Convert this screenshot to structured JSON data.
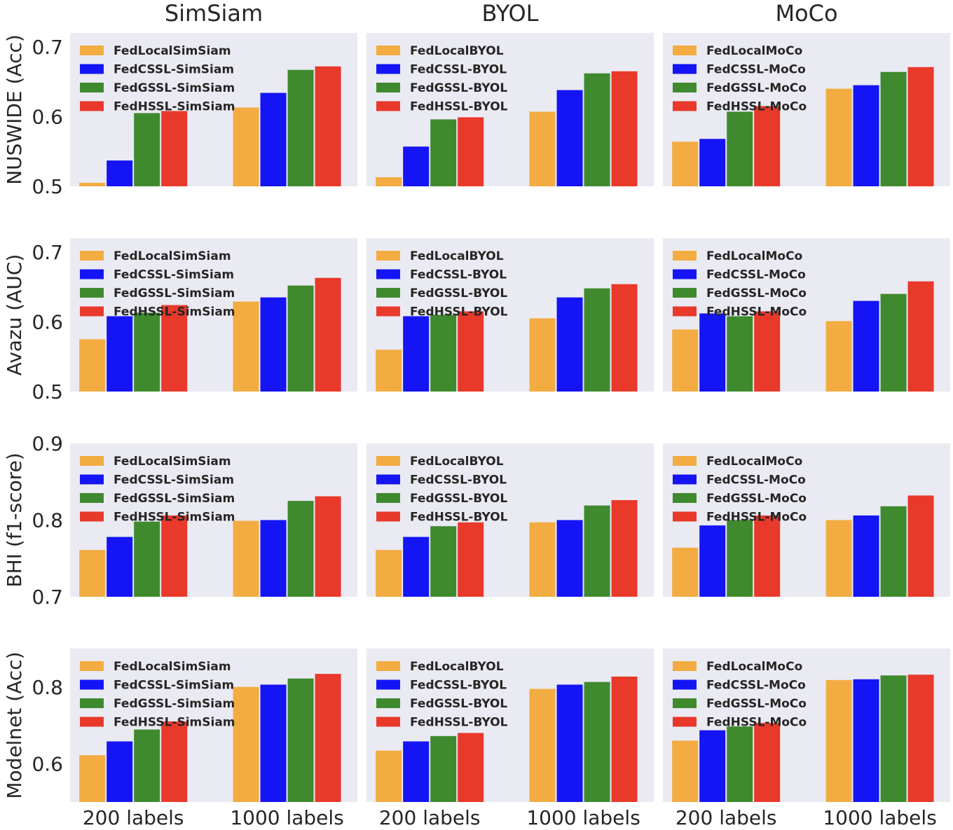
{
  "colors": {
    "panel_bg": "#eaeaf2",
    "local": "#f2ac42",
    "cssl": "#1414f5",
    "gssl": "#3f8a2f",
    "hssl": "#e8392b"
  },
  "columns": [
    "SimSiam",
    "BYOL",
    "MoCo"
  ],
  "row_labels": [
    "NUSWIDE (Acc)",
    "Avazu (AUC)",
    "BHI (f1-score)",
    "Modelnet (Acc)"
  ],
  "categories": [
    "200 labels",
    "1000 labels"
  ],
  "chart_data": [
    {
      "type": "bar",
      "row": 0,
      "col": 0,
      "title": "SimSiam",
      "ylabel": "NUSWIDE (Acc)",
      "ylim": [
        0.5,
        0.72
      ],
      "yticks": [
        "0.5",
        "0.6",
        "0.7"
      ],
      "categories": [
        "200 labels",
        "1000 labels"
      ],
      "legend": "top-left",
      "series": [
        {
          "name": "FedLocalSimSiam",
          "values": [
            0.505,
            0.613
          ]
        },
        {
          "name": "FedCSSL-SimSiam",
          "values": [
            0.537,
            0.634
          ]
        },
        {
          "name": "FedGSSL-SimSiam",
          "values": [
            0.605,
            0.667
          ]
        },
        {
          "name": "FedHSSL-SimSiam",
          "values": [
            0.608,
            0.672
          ]
        }
      ]
    },
    {
      "type": "bar",
      "row": 0,
      "col": 1,
      "title": "BYOL",
      "ylim": [
        0.5,
        0.72
      ],
      "categories": [
        "200 labels",
        "1000 labels"
      ],
      "legend": "top-left",
      "series": [
        {
          "name": "FedLocalBYOL",
          "values": [
            0.513,
            0.607
          ]
        },
        {
          "name": "FedCSSL-BYOL",
          "values": [
            0.557,
            0.638
          ]
        },
        {
          "name": "FedGSSL-BYOL",
          "values": [
            0.596,
            0.662
          ]
        },
        {
          "name": "FedHSSL-BYOL",
          "values": [
            0.599,
            0.665
          ]
        }
      ]
    },
    {
      "type": "bar",
      "row": 0,
      "col": 2,
      "title": "MoCo",
      "ylim": [
        0.5,
        0.72
      ],
      "categories": [
        "200 labels",
        "1000 labels"
      ],
      "legend": "top-left",
      "series": [
        {
          "name": "FedLocalMoCo",
          "values": [
            0.564,
            0.64
          ]
        },
        {
          "name": "FedCSSL-MoCo",
          "values": [
            0.568,
            0.645
          ]
        },
        {
          "name": "FedGSSL-MoCo",
          "values": [
            0.607,
            0.664
          ]
        },
        {
          "name": "FedHSSL-MoCo",
          "values": [
            0.615,
            0.671
          ]
        }
      ]
    },
    {
      "type": "bar",
      "row": 1,
      "col": 0,
      "ylabel": "Avazu (AUC)",
      "ylim": [
        0.5,
        0.72
      ],
      "yticks": [
        "0.5",
        "0.6",
        "0.7"
      ],
      "categories": [
        "200 labels",
        "1000 labels"
      ],
      "legend": "top-left",
      "series": [
        {
          "name": "FedLocalSimSiam",
          "values": [
            0.575,
            0.629
          ]
        },
        {
          "name": "FedCSSL-SimSiam",
          "values": [
            0.608,
            0.635
          ]
        },
        {
          "name": "FedGSSL-SimSiam",
          "values": [
            0.613,
            0.652
          ]
        },
        {
          "name": "FedHSSL-SimSiam",
          "values": [
            0.624,
            0.663
          ]
        }
      ]
    },
    {
      "type": "bar",
      "row": 1,
      "col": 1,
      "ylim": [
        0.5,
        0.72
      ],
      "categories": [
        "200 labels",
        "1000 labels"
      ],
      "legend": "top-left",
      "series": [
        {
          "name": "FedLocalBYOL",
          "values": [
            0.56,
            0.605
          ]
        },
        {
          "name": "FedCSSL-BYOL",
          "values": [
            0.608,
            0.635
          ]
        },
        {
          "name": "FedGSSL-BYOL",
          "values": [
            0.61,
            0.648
          ]
        },
        {
          "name": "FedHSSL-BYOL",
          "values": [
            0.615,
            0.654
          ]
        }
      ]
    },
    {
      "type": "bar",
      "row": 1,
      "col": 2,
      "ylim": [
        0.5,
        0.72
      ],
      "categories": [
        "200 labels",
        "1000 labels"
      ],
      "legend": "top-left",
      "series": [
        {
          "name": "FedLocalMoCo",
          "values": [
            0.589,
            0.601
          ]
        },
        {
          "name": "FedCSSL-MoCo",
          "values": [
            0.612,
            0.63
          ]
        },
        {
          "name": "FedGSSL-MoCo",
          "values": [
            0.608,
            0.64
          ]
        },
        {
          "name": "FedHSSL-MoCo",
          "values": [
            0.615,
            0.658
          ]
        }
      ]
    },
    {
      "type": "bar",
      "row": 2,
      "col": 0,
      "ylabel": "BHI (f1-score)",
      "ylim": [
        0.7,
        0.9
      ],
      "yticks": [
        "0.7",
        "0.8",
        "0.9"
      ],
      "categories": [
        "200 labels",
        "1000 labels"
      ],
      "legend": "top-left",
      "series": [
        {
          "name": "FedLocalSimSiam",
          "values": [
            0.761,
            0.799
          ]
        },
        {
          "name": "FedCSSL-SimSiam",
          "values": [
            0.778,
            0.8
          ]
        },
        {
          "name": "FedGSSL-SimSiam",
          "values": [
            0.798,
            0.825
          ]
        },
        {
          "name": "FedHSSL-SimSiam",
          "values": [
            0.806,
            0.831
          ]
        }
      ]
    },
    {
      "type": "bar",
      "row": 2,
      "col": 1,
      "ylim": [
        0.7,
        0.9
      ],
      "categories": [
        "200 labels",
        "1000 labels"
      ],
      "legend": "top-left",
      "series": [
        {
          "name": "FedLocalBYOL",
          "values": [
            0.761,
            0.797
          ]
        },
        {
          "name": "FedCSSL-BYOL",
          "values": [
            0.778,
            0.8
          ]
        },
        {
          "name": "FedGSSL-BYOL",
          "values": [
            0.792,
            0.819
          ]
        },
        {
          "name": "FedHSSL-BYOL",
          "values": [
            0.797,
            0.826
          ]
        }
      ]
    },
    {
      "type": "bar",
      "row": 2,
      "col": 2,
      "ylim": [
        0.7,
        0.9
      ],
      "categories": [
        "200 labels",
        "1000 labels"
      ],
      "legend": "top-left",
      "series": [
        {
          "name": "FedLocalMoCo",
          "values": [
            0.764,
            0.8
          ]
        },
        {
          "name": "FedCSSL-MoCo",
          "values": [
            0.793,
            0.806
          ]
        },
        {
          "name": "FedGSSL-MoCo",
          "values": [
            0.8,
            0.818
          ]
        },
        {
          "name": "FedHSSL-MoCo",
          "values": [
            0.806,
            0.832
          ]
        }
      ]
    },
    {
      "type": "bar",
      "row": 3,
      "col": 0,
      "ylabel": "Modelnet (Acc)",
      "ylim": [
        0.5,
        0.9
      ],
      "yticks": [
        "0.6",
        "0.8"
      ],
      "categories": [
        "200 labels",
        "1000 labels"
      ],
      "legend": "top-left",
      "series": [
        {
          "name": "FedLocalSimSiam",
          "values": [
            0.622,
            0.8
          ]
        },
        {
          "name": "FedCSSL-SimSiam",
          "values": [
            0.658,
            0.806
          ]
        },
        {
          "name": "FedGSSL-SimSiam",
          "values": [
            0.689,
            0.822
          ]
        },
        {
          "name": "FedHSSL-SimSiam",
          "values": [
            0.71,
            0.834
          ]
        }
      ]
    },
    {
      "type": "bar",
      "row": 3,
      "col": 1,
      "ylim": [
        0.5,
        0.9
      ],
      "categories": [
        "200 labels",
        "1000 labels"
      ],
      "legend": "top-left",
      "series": [
        {
          "name": "FedLocalBYOL",
          "values": [
            0.634,
            0.795
          ]
        },
        {
          "name": "FedCSSL-BYOL",
          "values": [
            0.658,
            0.806
          ]
        },
        {
          "name": "FedGSSL-BYOL",
          "values": [
            0.672,
            0.813
          ]
        },
        {
          "name": "FedHSSL-BYOL",
          "values": [
            0.68,
            0.827
          ]
        }
      ]
    },
    {
      "type": "bar",
      "row": 3,
      "col": 2,
      "ylim": [
        0.5,
        0.9
      ],
      "categories": [
        "200 labels",
        "1000 labels"
      ],
      "legend": "top-left",
      "series": [
        {
          "name": "FedLocalMoCo",
          "values": [
            0.66,
            0.818
          ]
        },
        {
          "name": "FedCSSL-MoCo",
          "values": [
            0.687,
            0.82
          ]
        },
        {
          "name": "FedGSSL-MoCo",
          "values": [
            0.697,
            0.83
          ]
        },
        {
          "name": "FedHSSL-MoCo",
          "values": [
            0.706,
            0.832
          ]
        }
      ]
    }
  ]
}
